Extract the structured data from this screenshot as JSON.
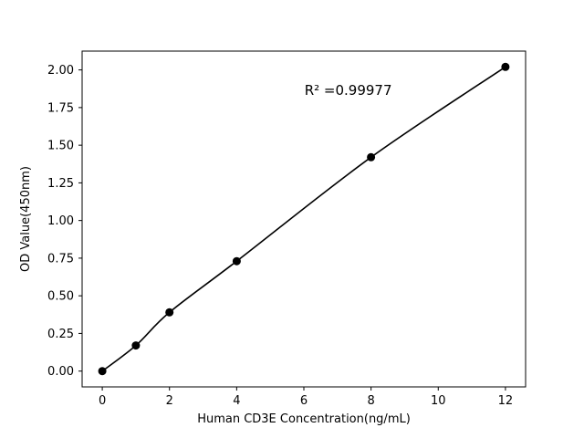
{
  "figure": {
    "aria_label": "Standard curve scatter plot with fitted line"
  },
  "chart_data": {
    "type": "scatter",
    "title": "",
    "xlabel": "Human CD3E Concentration(ng/mL)",
    "ylabel": "OD Value(450nm)",
    "x": [
      0,
      1,
      2,
      4,
      8,
      12
    ],
    "y": [
      0.0,
      0.17,
      0.39,
      0.73,
      1.42,
      2.02
    ],
    "annotation": "R² =0.99977",
    "xlim": [
      -0.6,
      12.6
    ],
    "ylim": [
      -0.105,
      2.125
    ],
    "xticks": [
      0,
      2,
      4,
      6,
      8,
      10,
      12
    ],
    "yticks": [
      0.0,
      0.25,
      0.5,
      0.75,
      1.0,
      1.25,
      1.5,
      1.75,
      2.0
    ],
    "grid": false,
    "legend": "none",
    "line_color": "#000000",
    "marker_color": "#000000",
    "background_color": "#ffffff"
  }
}
